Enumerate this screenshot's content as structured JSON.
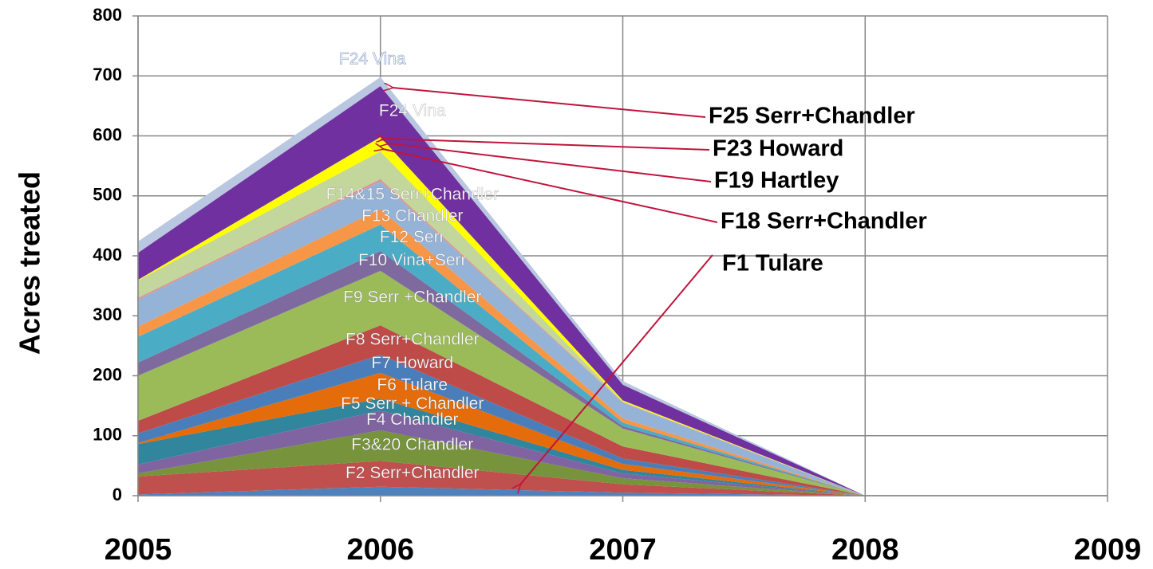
{
  "chart_data": {
    "type": "stacked_area",
    "y_label": "Acres treated",
    "x": [
      2005,
      2006,
      2007,
      2008
    ],
    "xlim": [
      2005,
      2009
    ],
    "xticks": [
      2005,
      2006,
      2007,
      2008,
      2009
    ],
    "ylim": [
      0,
      800
    ],
    "yticks": [
      0,
      100,
      200,
      300,
      400,
      500,
      600,
      700,
      800
    ],
    "grid": true,
    "series": [
      {
        "name": "F1 Tulare",
        "color": "#4f81bd",
        "values": [
          2,
          15,
          5,
          0
        ]
      },
      {
        "name": "F2  Serr+Chandler",
        "color": "#c0504d",
        "values": [
          30,
          43,
          14,
          0
        ]
      },
      {
        "name": "F3&20 Chandler",
        "color": "#77933c",
        "values": [
          5,
          51,
          10,
          0
        ]
      },
      {
        "name": "F4  Chandler",
        "color": "#8064a2",
        "values": [
          15,
          33,
          8,
          0
        ]
      },
      {
        "name": "F5 Serr + Chandler",
        "color": "#31859c",
        "values": [
          34,
          20,
          6,
          0
        ]
      },
      {
        "name": "F6 Tulare",
        "color": "#e46c0a",
        "values": [
          2,
          43,
          10,
          0
        ]
      },
      {
        "name": "F7 Howard",
        "color": "#4a7ebb",
        "values": [
          16,
          30,
          9,
          0
        ]
      },
      {
        "name": "F8  Serr+Chandler",
        "color": "#be4b48",
        "values": [
          21,
          49,
          20,
          0
        ]
      },
      {
        "name": "F9  Serr +Chandler",
        "color": "#9bbb59",
        "values": [
          75,
          91,
          30,
          0
        ]
      },
      {
        "name": "F10  Vina+Serr",
        "color": "#7f6aa0",
        "values": [
          22,
          33,
          4,
          0
        ]
      },
      {
        "name": "F12  Serr",
        "color": "#4bacc6",
        "values": [
          43,
          44,
          6,
          0
        ]
      },
      {
        "name": "F13  Chandler",
        "color": "#f79646",
        "values": [
          17,
          26,
          7,
          0
        ]
      },
      {
        "name": "F14&15 Serr+Chandler",
        "color": "#95b3d7",
        "values": [
          45,
          46,
          26,
          0
        ]
      },
      {
        "name": "F18  Serr+Chandler",
        "color": "#da9694",
        "values": [
          3,
          4,
          1,
          0
        ]
      },
      {
        "name": "F19  Hartley",
        "color": "#c3d69b",
        "values": [
          29,
          46,
          1,
          0
        ]
      },
      {
        "name": "F23 Howard",
        "color": "#ffff00",
        "values": [
          1,
          24,
          2,
          0
        ]
      },
      {
        "name": "F24  Vina",
        "color": "#7030a0",
        "values": [
          45,
          85,
          26,
          0
        ]
      },
      {
        "name": "F25 Serr+Chandler",
        "color": "#b9c7e0",
        "values": [
          19,
          15,
          6,
          0
        ]
      }
    ]
  }
}
